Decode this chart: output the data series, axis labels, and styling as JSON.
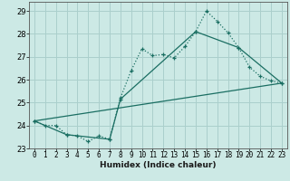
{
  "title": "",
  "xlabel": "Humidex (Indice chaleur)",
  "xlim": [
    -0.5,
    23.5
  ],
  "ylim": [
    23.0,
    29.4
  ],
  "yticks": [
    23,
    24,
    25,
    26,
    27,
    28,
    29
  ],
  "xticks": [
    0,
    1,
    2,
    3,
    4,
    5,
    6,
    7,
    8,
    9,
    10,
    11,
    12,
    13,
    14,
    15,
    16,
    17,
    18,
    19,
    20,
    21,
    22,
    23
  ],
  "bg_color": "#cce9e5",
  "line_color": "#1a6e62",
  "grid_color": "#aacfcc",
  "line1_x": [
    0,
    1,
    2,
    3,
    4,
    5,
    6,
    7,
    8,
    9,
    10,
    11,
    12,
    13,
    14,
    15,
    16,
    17,
    18,
    19,
    20,
    21,
    22,
    23
  ],
  "line1_y": [
    24.2,
    24.0,
    24.0,
    23.6,
    23.55,
    23.3,
    23.55,
    23.4,
    25.2,
    26.4,
    27.35,
    27.05,
    27.1,
    26.95,
    27.45,
    28.1,
    29.0,
    28.55,
    28.05,
    27.4,
    26.55,
    26.15,
    25.95,
    25.85
  ],
  "line2_x": [
    0,
    3,
    7,
    8,
    15,
    19,
    23
  ],
  "line2_y": [
    24.2,
    23.6,
    23.4,
    25.15,
    28.1,
    27.4,
    25.85
  ],
  "line3_x": [
    0,
    23
  ],
  "line3_y": [
    24.2,
    25.85
  ]
}
